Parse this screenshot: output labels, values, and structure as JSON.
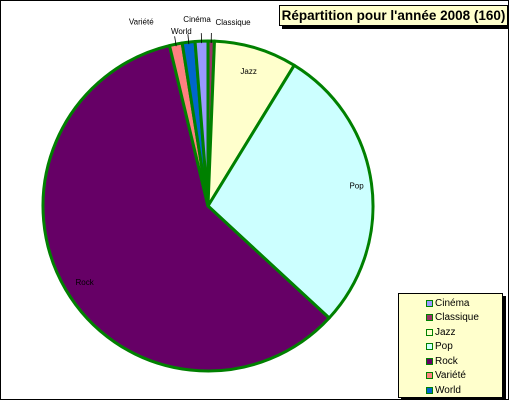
{
  "chart_data": {
    "type": "pie",
    "title": "Répartition pour l'année 2008 (160)",
    "categories": [
      "Cinéma",
      "Classique",
      "Jazz",
      "Pop",
      "Rock",
      "Variété",
      "World"
    ],
    "values": [
      2,
      1,
      13,
      45,
      95,
      2,
      2
    ],
    "slice_order": [
      "Classique",
      "Jazz",
      "Pop",
      "Rock",
      "Variété",
      "World",
      "Cinéma"
    ],
    "slice_colors": {
      "Cinéma": "#9999ff",
      "Classique": "#993366",
      "Jazz": "#ffffcc",
      "Pop": "#ccffff",
      "Rock": "#660066",
      "Variété": "#ff8080",
      "World": "#0066cc"
    },
    "slice_border_color": "#008000",
    "legend": {
      "placement": "bottom-right",
      "background": "#ffffcc",
      "entries": [
        "Cinéma",
        "Classique",
        "Jazz",
        "Pop",
        "Rock",
        "Variété",
        "World"
      ]
    },
    "title_background": "#ffffcc"
  }
}
